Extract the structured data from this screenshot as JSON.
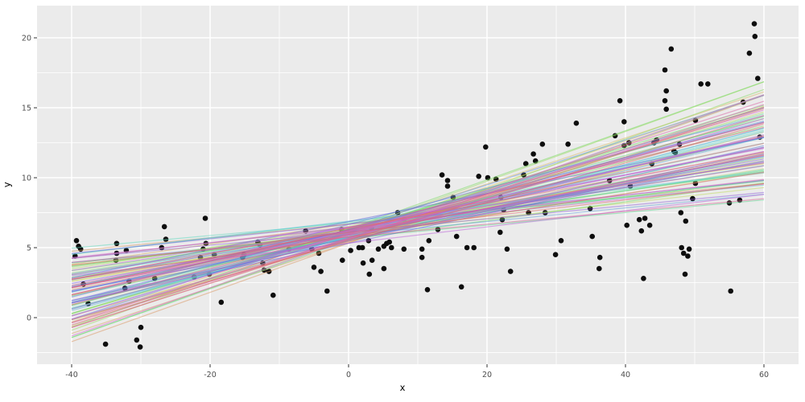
{
  "figure": {
    "background": "#FFFFFF",
    "panel_background": "#EBEBEB",
    "grid_color": "#FFFFFF",
    "tick_mark_color": "#333333",
    "tick_label_color": "#4D4D4D",
    "axis_title_color": "#000000"
  },
  "chart_data": {
    "type": "scatter",
    "title": "",
    "xlabel": "x",
    "ylabel": "y",
    "xlim": [
      -45,
      65
    ],
    "ylim": [
      -3.33,
      22.3
    ],
    "x_ticks": [
      -40,
      -20,
      0,
      20,
      40,
      60
    ],
    "y_ticks": [
      0,
      5,
      10,
      15,
      20
    ],
    "x_minor_ticks": [
      -30,
      -10,
      10,
      30,
      50
    ],
    "y_minor_ticks": [
      -2.5,
      2.5,
      7.5,
      12.5,
      17.5
    ],
    "grid": true,
    "legend": "none",
    "point_color": "#0D0D0D",
    "point_radius": 3.3,
    "points": [
      [
        -39.3,
        5.5
      ],
      [
        -39.0,
        5.1
      ],
      [
        -38.7,
        4.9
      ],
      [
        -39.5,
        4.4
      ],
      [
        -38.3,
        2.4
      ],
      [
        -37.6,
        1.0
      ],
      [
        -35.1,
        -1.9
      ],
      [
        -33.5,
        5.3
      ],
      [
        -33.5,
        4.6
      ],
      [
        -32.1,
        4.8
      ],
      [
        -33.6,
        4.1
      ],
      [
        -31.7,
        2.6
      ],
      [
        -32.3,
        2.1
      ],
      [
        -30.0,
        -0.7
      ],
      [
        -30.6,
        -1.6
      ],
      [
        -30.1,
        -2.1
      ],
      [
        -28.0,
        2.8
      ],
      [
        -26.6,
        6.5
      ],
      [
        -26.4,
        5.6
      ],
      [
        -27.0,
        5.0
      ],
      [
        -22.3,
        2.9
      ],
      [
        -20.7,
        7.1
      ],
      [
        -20.6,
        5.3
      ],
      [
        -21.0,
        4.9
      ],
      [
        -21.4,
        4.3
      ],
      [
        -19.4,
        4.5
      ],
      [
        -20.1,
        3.1
      ],
      [
        -18.4,
        1.1
      ],
      [
        -15.1,
        4.5
      ],
      [
        -15.3,
        4.3
      ],
      [
        -13.1,
        5.4
      ],
      [
        -12.8,
        5.2
      ],
      [
        -12.4,
        3.9
      ],
      [
        -12.2,
        3.4
      ],
      [
        -11.5,
        3.3
      ],
      [
        -10.9,
        1.6
      ],
      [
        -8.6,
        4.9
      ],
      [
        -6.2,
        6.2
      ],
      [
        -5.3,
        4.9
      ],
      [
        -4.3,
        4.6
      ],
      [
        -5.0,
        3.6
      ],
      [
        -4.0,
        3.3
      ],
      [
        -3.1,
        1.9
      ],
      [
        -1.0,
        6.3
      ],
      [
        -0.9,
        4.1
      ],
      [
        0.3,
        4.8
      ],
      [
        1.5,
        5.0
      ],
      [
        2.0,
        5.0
      ],
      [
        2.1,
        3.9
      ],
      [
        3.3,
        6.4
      ],
      [
        2.9,
        5.5
      ],
      [
        3.4,
        4.1
      ],
      [
        3.0,
        3.1
      ],
      [
        4.3,
        4.9
      ],
      [
        5.1,
        5.1
      ],
      [
        5.5,
        5.3
      ],
      [
        5.9,
        5.4
      ],
      [
        5.1,
        3.5
      ],
      [
        7.1,
        7.5
      ],
      [
        8.0,
        7.0
      ],
      [
        6.2,
        5.0
      ],
      [
        8.0,
        4.9
      ],
      [
        10.6,
        4.9
      ],
      [
        10.6,
        4.3
      ],
      [
        11.4,
        2.0
      ],
      [
        11.6,
        5.5
      ],
      [
        12.9,
        6.3
      ],
      [
        13.5,
        10.2
      ],
      [
        14.3,
        9.8
      ],
      [
        14.3,
        9.4
      ],
      [
        15.1,
        8.6
      ],
      [
        15.6,
        5.8
      ],
      [
        16.3,
        2.2
      ],
      [
        17.1,
        5.0
      ],
      [
        18.1,
        5.0
      ],
      [
        18.8,
        10.1
      ],
      [
        20.1,
        10.0
      ],
      [
        21.3,
        9.9
      ],
      [
        19.8,
        12.2
      ],
      [
        21.9,
        6.1
      ],
      [
        22.0,
        8.6
      ],
      [
        22.4,
        7.7
      ],
      [
        22.2,
        7.0
      ],
      [
        22.9,
        4.9
      ],
      [
        23.4,
        3.3
      ],
      [
        25.3,
        10.2
      ],
      [
        25.6,
        11.0
      ],
      [
        26.7,
        11.7
      ],
      [
        27.0,
        11.2
      ],
      [
        28.0,
        12.4
      ],
      [
        26.0,
        7.5
      ],
      [
        28.4,
        7.5
      ],
      [
        29.9,
        4.5
      ],
      [
        30.7,
        5.5
      ],
      [
        31.7,
        12.4
      ],
      [
        32.9,
        13.9
      ],
      [
        34.9,
        7.8
      ],
      [
        35.2,
        5.8
      ],
      [
        36.3,
        4.3
      ],
      [
        36.2,
        3.5
      ],
      [
        37.7,
        9.8
      ],
      [
        38.5,
        13.0
      ],
      [
        39.2,
        15.5
      ],
      [
        39.8,
        14.0
      ],
      [
        39.8,
        12.3
      ],
      [
        40.5,
        12.5
      ],
      [
        40.7,
        9.4
      ],
      [
        40.2,
        6.6
      ],
      [
        42.0,
        7.0
      ],
      [
        42.8,
        7.1
      ],
      [
        43.5,
        6.6
      ],
      [
        42.3,
        6.2
      ],
      [
        42.6,
        2.8
      ],
      [
        43.8,
        11.0
      ],
      [
        44.1,
        12.5
      ],
      [
        44.5,
        12.7
      ],
      [
        45.7,
        17.7
      ],
      [
        45.9,
        16.2
      ],
      [
        45.7,
        15.5
      ],
      [
        45.9,
        14.9
      ],
      [
        46.6,
        19.2
      ],
      [
        47.0,
        11.9
      ],
      [
        47.2,
        11.8
      ],
      [
        47.8,
        12.4
      ],
      [
        48.0,
        7.5
      ],
      [
        48.1,
        5.0
      ],
      [
        48.4,
        4.6
      ],
      [
        49.2,
        4.9
      ],
      [
        49.0,
        4.4
      ],
      [
        48.6,
        3.1
      ],
      [
        48.7,
        6.9
      ],
      [
        49.7,
        8.5
      ],
      [
        50.1,
        14.1
      ],
      [
        50.1,
        9.6
      ],
      [
        50.9,
        16.7
      ],
      [
        51.9,
        16.7
      ],
      [
        55.0,
        8.2
      ],
      [
        56.5,
        8.4
      ],
      [
        55.2,
        1.9
      ],
      [
        57.0,
        15.4
      ],
      [
        57.9,
        18.9
      ],
      [
        58.6,
        21.0
      ],
      [
        58.7,
        20.1
      ],
      [
        59.1,
        17.1
      ],
      [
        59.4,
        12.9
      ]
    ],
    "fit_lines": {
      "description": "bootstrap linear regression fits",
      "n": 100,
      "x_range": [
        -40,
        60
      ],
      "pinch_x": 3,
      "pinch_y_mean": 6.35,
      "pinch_y_sd": 0.32,
      "slope_mean": 0.112,
      "slope_sd": 0.034,
      "slope_min": 0.045,
      "slope_max": 0.195,
      "alpha": 0.55,
      "stroke_width": 1.2,
      "seed": 20,
      "palette": {
        "type": "ggplot-hue",
        "hue_start": 15,
        "saturation": 62,
        "lightness": 63
      }
    }
  }
}
